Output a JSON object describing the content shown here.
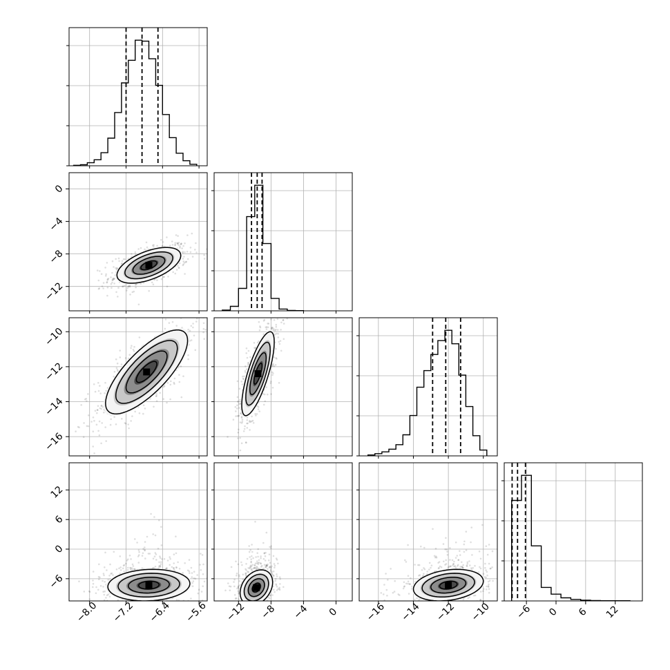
{
  "chart_data": {
    "type": "corner",
    "title": "",
    "n_params": 4,
    "param_labels": [
      "",
      "",
      "",
      ""
    ],
    "quantiles": [
      0.16,
      0.5,
      0.84
    ],
    "ranges": [
      [
        -8.45,
        -5.42
      ],
      [
        -15,
        2
      ],
      [
        -17.1,
        -9.2
      ],
      [
        -10.5,
        17.5
      ]
    ],
    "ticks": [
      [
        -8.0,
        -7.2,
        -6.4,
        -5.6
      ],
      [
        -12,
        -8,
        -4,
        0
      ],
      [
        -16,
        -14,
        -12,
        -10
      ],
      [
        -6,
        0,
        6,
        12
      ]
    ],
    "tick_labels": [
      [
        "−8.0",
        "−7.2",
        "−6.4",
        "−5.6"
      ],
      [
        "−12",
        "−8",
        "−4",
        "0"
      ],
      [
        "−16",
        "−14",
        "−12",
        "−10"
      ],
      [
        "−6",
        "0",
        "6",
        "12"
      ]
    ],
    "quantile_values": [
      [
        -7.2,
        -6.85,
        -6.5
      ],
      [
        -10.4,
        -9.7,
        -9.1
      ],
      [
        -12.9,
        -12.15,
        -11.3
      ],
      [
        -8.9,
        -7.8,
        -6.2
      ]
    ],
    "marginals": [
      {
        "bin_edges": [
          -8.35,
          -8.2,
          -8.05,
          -7.9,
          -7.75,
          -7.6,
          -7.45,
          -7.3,
          -7.15,
          -7.0,
          -6.85,
          -6.7,
          -6.55,
          -6.4,
          -6.25,
          -6.1,
          -5.95,
          -5.8,
          -5.65
        ],
        "counts": [
          1,
          2,
          6,
          12,
          26,
          55,
          106,
          165,
          210,
          250,
          248,
          213,
          160,
          102,
          56,
          25,
          10,
          3
        ]
      },
      {
        "bin_edges": [
          -14,
          -13,
          -12,
          -11,
          -10,
          -9,
          -8,
          -7,
          -6,
          -5,
          -4
        ],
        "counts": [
          3,
          20,
          100,
          420,
          560,
          300,
          55,
          8,
          2,
          1
        ]
      },
      {
        "bin_edges": [
          -16.6,
          -16.2,
          -15.8,
          -15.4,
          -15.0,
          -14.6,
          -14.2,
          -13.8,
          -13.4,
          -13.0,
          -12.6,
          -12.2,
          -11.8,
          -11.4,
          -11.0,
          -10.6,
          -10.2,
          -9.8
        ],
        "counts": [
          2,
          5,
          9,
          15,
          25,
          47,
          90,
          153,
          190,
          226,
          257,
          280,
          250,
          180,
          110,
          45,
          13
        ]
      },
      {
        "bin_edges": [
          -9,
          -7,
          -5,
          -3,
          -1,
          1,
          3,
          5,
          7,
          9,
          11,
          13,
          15
        ],
        "counts": [
          520,
          650,
          285,
          70,
          35,
          16,
          8,
          4,
          2,
          1,
          1,
          1
        ]
      }
    ],
    "pairs": [
      {
        "x": 0,
        "y": 1,
        "center": [
          -6.7,
          -9.4
        ],
        "sd": [
          0.35,
          1.1
        ],
        "rho": 0.55
      },
      {
        "x": 0,
        "y": 2,
        "center": [
          -6.75,
          -12.3
        ],
        "sd": [
          0.45,
          1.2
        ],
        "rho": 0.75
      },
      {
        "x": 1,
        "y": 2,
        "center": [
          -9.6,
          -12.4
        ],
        "sd": [
          1.0,
          1.2
        ],
        "rho": 0.75
      },
      {
        "x": 0,
        "y": 3,
        "center": [
          -6.7,
          -7.3
        ],
        "sd": [
          0.45,
          1.6
        ],
        "rho": 0.1
      },
      {
        "x": 1,
        "y": 3,
        "center": [
          -9.8,
          -7.8
        ],
        "sd": [
          1.0,
          1.8
        ],
        "rho": 0.3
      },
      {
        "x": 2,
        "y": 3,
        "center": [
          -12.0,
          -7.3
        ],
        "sd": [
          1.0,
          1.6
        ],
        "rho": 0.25
      }
    ],
    "grid": true,
    "colors": {
      "axes": "#000000",
      "grid": "#b0b0b0",
      "points": "#000000",
      "contour": "#000000"
    }
  }
}
